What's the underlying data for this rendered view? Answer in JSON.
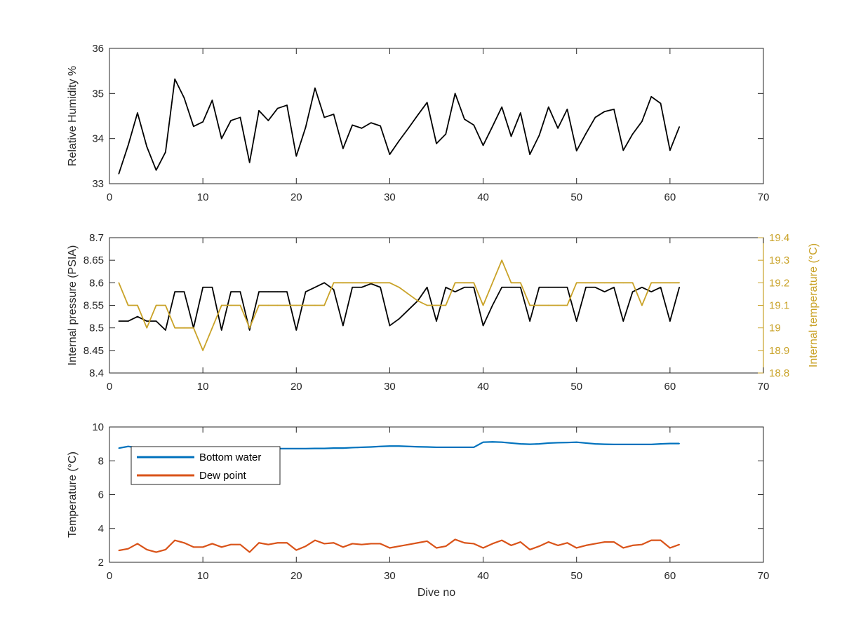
{
  "chart_data": [
    {
      "type": "line",
      "ylabel": "Relative Humidity %",
      "xlim": [
        0,
        70
      ],
      "ylim": [
        33,
        36
      ],
      "xticks": [
        0,
        10,
        20,
        30,
        40,
        50,
        60,
        70
      ],
      "yticks": [
        33,
        34,
        35,
        36
      ],
      "series": [
        {
          "color": "#000000",
          "x": [
            1,
            2,
            3,
            4,
            5,
            6,
            7,
            8,
            9,
            10,
            11,
            12,
            13,
            14,
            15,
            16,
            17,
            18,
            19,
            20,
            21,
            22,
            23,
            24,
            25,
            26,
            27,
            28,
            29,
            30,
            31,
            32,
            33,
            34,
            35,
            36,
            37,
            38,
            39,
            40,
            41,
            42,
            43,
            44,
            45,
            46,
            47,
            48,
            49,
            50,
            51,
            52,
            53,
            54,
            55,
            56,
            57,
            58,
            59,
            60,
            61
          ],
          "values": [
            33.22,
            33.85,
            34.57,
            33.82,
            33.3,
            33.7,
            35.32,
            34.9,
            34.27,
            34.37,
            34.85,
            34.0,
            34.4,
            34.47,
            33.47,
            34.62,
            34.4,
            34.67,
            34.74,
            33.61,
            34.25,
            35.12,
            34.47,
            34.54,
            33.78,
            34.3,
            34.23,
            34.35,
            34.28,
            33.65,
            33.95,
            34.23,
            34.52,
            34.8,
            33.89,
            34.1,
            35.0,
            34.43,
            34.3,
            33.85,
            34.27,
            34.7,
            34.05,
            34.57,
            33.65,
            34.07,
            34.7,
            34.23,
            34.65,
            33.73,
            34.11,
            34.47,
            34.6,
            34.65,
            33.74,
            34.1,
            34.38,
            34.93,
            34.78,
            33.74,
            34.26
          ]
        }
      ]
    },
    {
      "type": "line",
      "ylabel": "Internal pressure (PSIA)",
      "y2label": "Internal temperature (°C)",
      "xlim": [
        0,
        70
      ],
      "ylim": [
        8.4,
        8.7
      ],
      "y2lim": [
        18.8,
        19.4
      ],
      "xticks": [
        0,
        10,
        20,
        30,
        40,
        50,
        60,
        70
      ],
      "yticks": [
        "8.4",
        "8.45",
        "8.5",
        "8.55",
        "8.6",
        "8.65",
        "8.7"
      ],
      "y2ticks": [
        "18.8",
        "18.9",
        "19",
        "19.1",
        "19.2",
        "19.3",
        "19.4"
      ],
      "y2color": "#c9a227",
      "series": [
        {
          "axis": "left",
          "color": "#000000",
          "x": [
            1,
            2,
            3,
            4,
            5,
            6,
            7,
            8,
            9,
            10,
            11,
            12,
            13,
            14,
            15,
            16,
            17,
            18,
            19,
            20,
            21,
            22,
            23,
            24,
            25,
            26,
            27,
            28,
            29,
            30,
            31,
            32,
            33,
            34,
            35,
            36,
            37,
            38,
            39,
            40,
            41,
            42,
            43,
            44,
            45,
            46,
            47,
            48,
            49,
            50,
            51,
            52,
            53,
            54,
            55,
            56,
            57,
            58,
            59,
            60,
            61
          ],
          "values": [
            8.515,
            8.515,
            8.525,
            8.515,
            8.515,
            8.495,
            8.58,
            8.58,
            8.5,
            8.59,
            8.59,
            8.495,
            8.58,
            8.58,
            8.495,
            8.58,
            8.58,
            8.58,
            8.58,
            8.495,
            8.58,
            8.59,
            8.6,
            8.585,
            8.505,
            8.59,
            8.59,
            8.598,
            8.59,
            8.505,
            8.52,
            8.54,
            8.56,
            8.59,
            8.515,
            8.59,
            8.58,
            8.59,
            8.59,
            8.505,
            8.55,
            8.59,
            8.59,
            8.59,
            8.515,
            8.59,
            8.59,
            8.59,
            8.59,
            8.515,
            8.59,
            8.59,
            8.58,
            8.59,
            8.515,
            8.58,
            8.59,
            8.58,
            8.59,
            8.515,
            8.59
          ]
        },
        {
          "axis": "right",
          "color": "#c9a227",
          "x": [
            1,
            2,
            3,
            4,
            5,
            6,
            7,
            8,
            9,
            10,
            11,
            12,
            13,
            14,
            15,
            16,
            17,
            18,
            19,
            20,
            21,
            22,
            23,
            24,
            25,
            26,
            27,
            28,
            29,
            30,
            31,
            32,
            33,
            34,
            35,
            36,
            37,
            38,
            39,
            40,
            41,
            42,
            43,
            44,
            45,
            46,
            47,
            48,
            49,
            50,
            51,
            52,
            53,
            54,
            55,
            56,
            57,
            58,
            59,
            60,
            61
          ],
          "values": [
            19.2,
            19.1,
            19.1,
            19.0,
            19.1,
            19.1,
            19.0,
            19.0,
            19.0,
            18.9,
            19.0,
            19.1,
            19.1,
            19.1,
            19.0,
            19.1,
            19.1,
            19.1,
            19.1,
            19.1,
            19.1,
            19.1,
            19.1,
            19.2,
            19.2,
            19.2,
            19.2,
            19.2,
            19.2,
            19.2,
            19.18,
            19.15,
            19.12,
            19.1,
            19.1,
            19.1,
            19.2,
            19.2,
            19.2,
            19.1,
            19.2,
            19.3,
            19.2,
            19.2,
            19.1,
            19.1,
            19.1,
            19.1,
            19.1,
            19.2,
            19.2,
            19.2,
            19.2,
            19.2,
            19.2,
            19.2,
            19.1,
            19.2,
            19.2,
            19.2,
            19.2
          ]
        }
      ]
    },
    {
      "type": "line",
      "xlabel": "Dive no",
      "ylabel": "Temperature (°C)",
      "xlim": [
        0,
        70
      ],
      "ylim": [
        2,
        10
      ],
      "xticks": [
        0,
        10,
        20,
        30,
        40,
        50,
        60,
        70
      ],
      "yticks": [
        2,
        4,
        6,
        8,
        10
      ],
      "legend": "top-left",
      "series": [
        {
          "name": "Bottom water",
          "color": "#0072bd",
          "x": [
            1,
            2,
            3,
            4,
            5,
            6,
            7,
            8,
            9,
            10,
            11,
            12,
            13,
            14,
            15,
            16,
            17,
            18,
            19,
            20,
            21,
            22,
            23,
            24,
            25,
            26,
            27,
            28,
            29,
            30,
            31,
            32,
            33,
            34,
            35,
            36,
            37,
            38,
            39,
            40,
            41,
            42,
            43,
            44,
            45,
            46,
            47,
            48,
            49,
            50,
            51,
            52,
            53,
            54,
            55,
            56,
            57,
            58,
            59,
            60,
            61
          ],
          "values": [
            8.75,
            8.85,
            8.78,
            8.75,
            8.72,
            8.7,
            8.72,
            8.73,
            8.7,
            8.72,
            8.72,
            8.7,
            8.72,
            8.72,
            8.72,
            8.72,
            8.72,
            8.72,
            8.72,
            8.72,
            8.72,
            8.73,
            8.73,
            8.75,
            8.75,
            8.78,
            8.8,
            8.82,
            8.85,
            8.87,
            8.87,
            8.85,
            8.83,
            8.82,
            8.8,
            8.8,
            8.8,
            8.8,
            8.8,
            9.1,
            9.12,
            9.1,
            9.05,
            9.0,
            8.98,
            9.0,
            9.05,
            9.07,
            9.08,
            9.1,
            9.05,
            9.0,
            8.98,
            8.97,
            8.97,
            8.97,
            8.97,
            8.97,
            9.0,
            9.02,
            9.02
          ]
        },
        {
          "name": "Dew point",
          "color": "#d95319",
          "x": [
            1,
            2,
            3,
            4,
            5,
            6,
            7,
            8,
            9,
            10,
            11,
            12,
            13,
            14,
            15,
            16,
            17,
            18,
            19,
            20,
            21,
            22,
            23,
            24,
            25,
            26,
            27,
            28,
            29,
            30,
            31,
            32,
            33,
            34,
            35,
            36,
            37,
            38,
            39,
            40,
            41,
            42,
            43,
            44,
            45,
            46,
            47,
            48,
            49,
            50,
            51,
            52,
            53,
            54,
            55,
            56,
            57,
            58,
            59,
            60,
            61
          ],
          "values": [
            2.7,
            2.8,
            3.1,
            2.75,
            2.6,
            2.75,
            3.3,
            3.15,
            2.9,
            2.9,
            3.1,
            2.9,
            3.05,
            3.05,
            2.6,
            3.15,
            3.05,
            3.15,
            3.15,
            2.72,
            2.95,
            3.3,
            3.1,
            3.15,
            2.9,
            3.1,
            3.05,
            3.1,
            3.1,
            2.85,
            2.95,
            3.05,
            3.15,
            3.25,
            2.85,
            2.95,
            3.35,
            3.15,
            3.1,
            2.85,
            3.1,
            3.3,
            3.0,
            3.2,
            2.75,
            2.95,
            3.2,
            3.0,
            3.15,
            2.85,
            3.0,
            3.1,
            3.2,
            3.2,
            2.85,
            3.0,
            3.05,
            3.3,
            3.3,
            2.85,
            3.05
          ]
        }
      ]
    }
  ]
}
